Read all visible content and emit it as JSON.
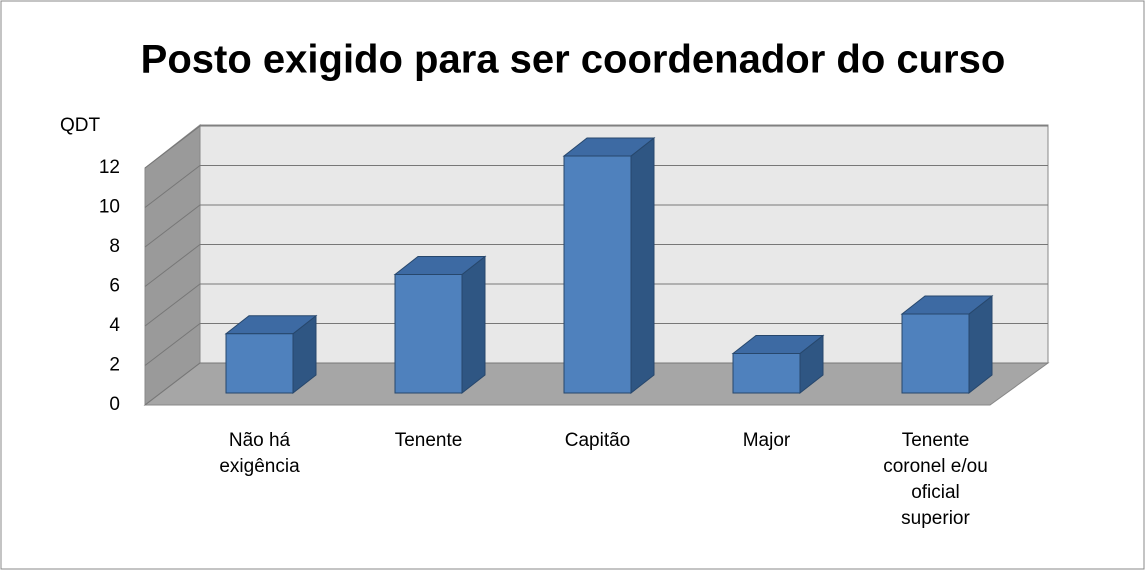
{
  "chart_data": {
    "type": "bar3d",
    "title": "Posto exigido para ser coordenador do curso",
    "y_label": "QDT",
    "categories": [
      "Não há exigência",
      "Tenente",
      "Capitão",
      "Major",
      "Tenente coronel e/ou oficial superior"
    ],
    "values": [
      3,
      6,
      12,
      2,
      4
    ],
    "color": "#4f81bd",
    "ylim": [
      0,
      12
    ],
    "yticks": [
      0,
      2,
      4,
      6,
      8,
      10,
      12
    ],
    "grid": true
  }
}
